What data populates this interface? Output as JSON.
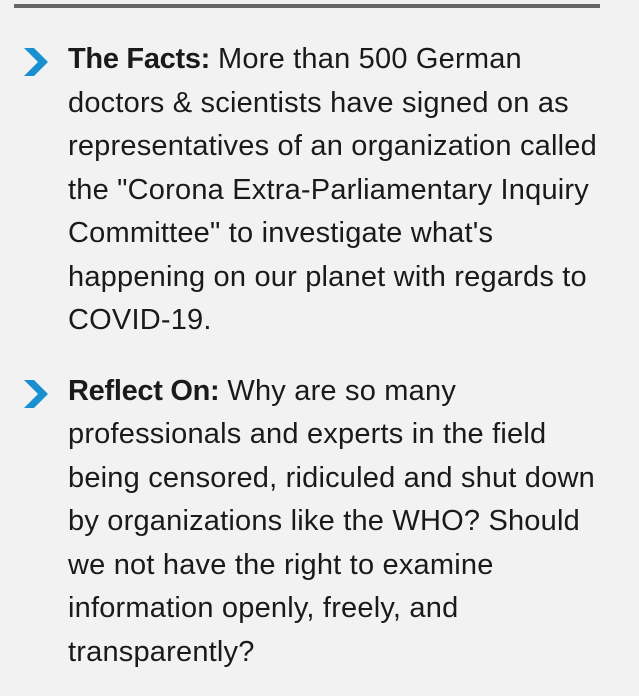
{
  "items": [
    {
      "icon": "chevron-right-icon",
      "label": "The Facts:",
      "text": "More than 500 German doctors & scientists have signed on as representatives of an organization called the \"Corona Extra-Parliamentary Inquiry Committee\" to investigate what's happening on our planet with regards to COVID-19."
    },
    {
      "icon": "chevron-right-icon",
      "label": "Reflect On:",
      "text": "Why are so many professionals and experts in the field being censored, ridiculed and shut down by organizations like the WHO? Should we not have the right to examine information openly, freely, and transparently?"
    }
  ],
  "colors": {
    "background": "#f2f2f2",
    "rule": "#666666",
    "accent": "#1a8fd1",
    "text": "#1a1a1a"
  }
}
